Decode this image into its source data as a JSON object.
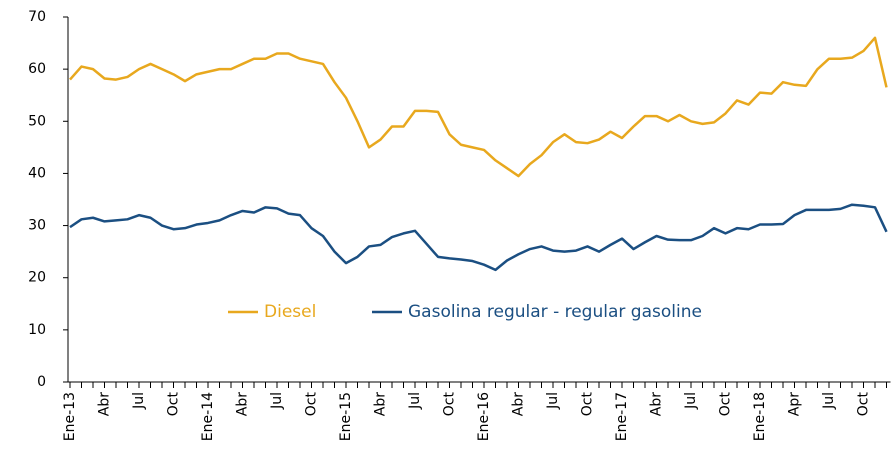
{
  "chart_data": {
    "type": "line",
    "categories": [
      "Ene-13",
      null,
      null,
      "Abr",
      null,
      null,
      "Jul",
      null,
      null,
      "Oct",
      null,
      null,
      "Ene-14",
      null,
      null,
      "Abr",
      null,
      null,
      "Jul",
      null,
      null,
      "Oct",
      null,
      null,
      "Ene-15",
      null,
      null,
      "Abr",
      null,
      null,
      "Jul",
      null,
      null,
      "Oct",
      null,
      null,
      "Ene-16",
      null,
      null,
      "Abr",
      null,
      null,
      "Jul",
      null,
      null,
      "Oct",
      null,
      null,
      "Ene-17",
      null,
      null,
      "Abr",
      null,
      null,
      "Jul",
      null,
      null,
      "Oct",
      null,
      null,
      "Ene-18",
      null,
      null,
      "Apr",
      null,
      null,
      "Jul",
      null,
      null,
      "Oct",
      null,
      null
    ],
    "series": [
      {
        "name": "Diesel",
        "color": "#e8a81e",
        "values": [
          58,
          60.5,
          60,
          58.2,
          58,
          58.5,
          60,
          61,
          60,
          59,
          57.7,
          59,
          59.5,
          60,
          60,
          61,
          62,
          62,
          63,
          63,
          62,
          61.5,
          61,
          57.5,
          54.5,
          50,
          45,
          46.5,
          49,
          49,
          52,
          52,
          51.8,
          47.5,
          45.5,
          45,
          44.5,
          42.5,
          41,
          39.5,
          41.8,
          43.5,
          46,
          47.5,
          46,
          45.8,
          46.5,
          48,
          46.8,
          49,
          51,
          51,
          50,
          51.2,
          50,
          49.5,
          49.8,
          51.5,
          54,
          53.2,
          55.5,
          55.3,
          57.5,
          57,
          56.8,
          60,
          62,
          62,
          62.2,
          63.5,
          66,
          56.5
        ]
      },
      {
        "name": "Gasolina regular - regular gasoline",
        "color": "#1b4f82",
        "values": [
          29.7,
          31.2,
          31.5,
          30.8,
          31,
          31.2,
          32,
          31.5,
          30,
          29.3,
          29.5,
          30.2,
          30.5,
          31,
          32,
          32.8,
          32.5,
          33.5,
          33.3,
          32.3,
          32,
          29.5,
          28,
          25,
          22.8,
          24,
          26,
          26.3,
          27.8,
          28.5,
          29,
          26.5,
          24,
          23.7,
          23.5,
          23.2,
          22.5,
          21.5,
          23.3,
          24.5,
          25.5,
          26,
          25.2,
          25,
          25.2,
          26,
          25,
          26.3,
          27.5,
          25.5,
          26.8,
          28,
          27.3,
          27.2,
          27.2,
          28,
          29.5,
          28.5,
          29.5,
          29.3,
          30.2,
          30.2,
          30.3,
          32,
          33,
          33,
          33,
          33.2,
          34,
          33.8,
          33.5,
          28.8
        ]
      }
    ],
    "ylim": [
      0,
      70
    ],
    "yticks": [
      0,
      10,
      20,
      30,
      40,
      50,
      60,
      70
    ],
    "grid": false
  }
}
